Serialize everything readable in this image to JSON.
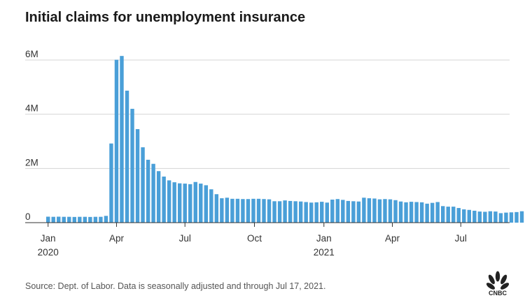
{
  "chart_data": {
    "type": "bar",
    "title": "Initial claims for unemployment insurance",
    "source": "Source: Dept. of Labor. Data is seasonally adjusted and through Jul 17, 2021.",
    "xlabel": "",
    "ylabel": "",
    "ylim": [
      0,
      6500000
    ],
    "grid": true,
    "bar_color": "#4a9fd8",
    "y_ticks": [
      {
        "value": 0,
        "label": "0"
      },
      {
        "value": 2000000,
        "label": "2M"
      },
      {
        "value": 4000000,
        "label": "4M"
      },
      {
        "value": 6000000,
        "label": "6M"
      }
    ],
    "x_ticks": [
      {
        "index": 0.0,
        "label": "Jan",
        "sublabel": "2020"
      },
      {
        "index": 13.0,
        "label": "Apr",
        "sublabel": ""
      },
      {
        "index": 26.0,
        "label": "Jul",
        "sublabel": ""
      },
      {
        "index": 39.2,
        "label": "Oct",
        "sublabel": ""
      },
      {
        "index": 52.4,
        "label": "Jan",
        "sublabel": "2021"
      },
      {
        "index": 65.4,
        "label": "Apr",
        "sublabel": ""
      },
      {
        "index": 78.4,
        "label": "Jul",
        "sublabel": ""
      }
    ],
    "first_week": "2020-01-04",
    "values": [
      220000,
      215000,
      220000,
      215000,
      215000,
      210000,
      215000,
      215000,
      210000,
      215000,
      215000,
      250000,
      2920000,
      6010000,
      6150000,
      4870000,
      4200000,
      3450000,
      2780000,
      2320000,
      2170000,
      1900000,
      1700000,
      1560000,
      1490000,
      1450000,
      1440000,
      1420000,
      1500000,
      1440000,
      1380000,
      1230000,
      1050000,
      900000,
      920000,
      880000,
      880000,
      870000,
      870000,
      880000,
      880000,
      870000,
      860000,
      790000,
      790000,
      820000,
      800000,
      790000,
      780000,
      760000,
      740000,
      750000,
      770000,
      740000,
      850000,
      870000,
      840000,
      800000,
      790000,
      780000,
      920000,
      900000,
      890000,
      860000,
      870000,
      860000,
      830000,
      780000,
      750000,
      770000,
      760000,
      750000,
      700000,
      730000,
      760000,
      610000,
      590000,
      590000,
      540000,
      490000,
      470000,
      440000,
      410000,
      400000,
      420000,
      410000,
      350000,
      370000,
      380000,
      390000,
      420000
    ]
  },
  "logo": {
    "text": "CNBC",
    "name": "cnbc-peacock-logo"
  }
}
